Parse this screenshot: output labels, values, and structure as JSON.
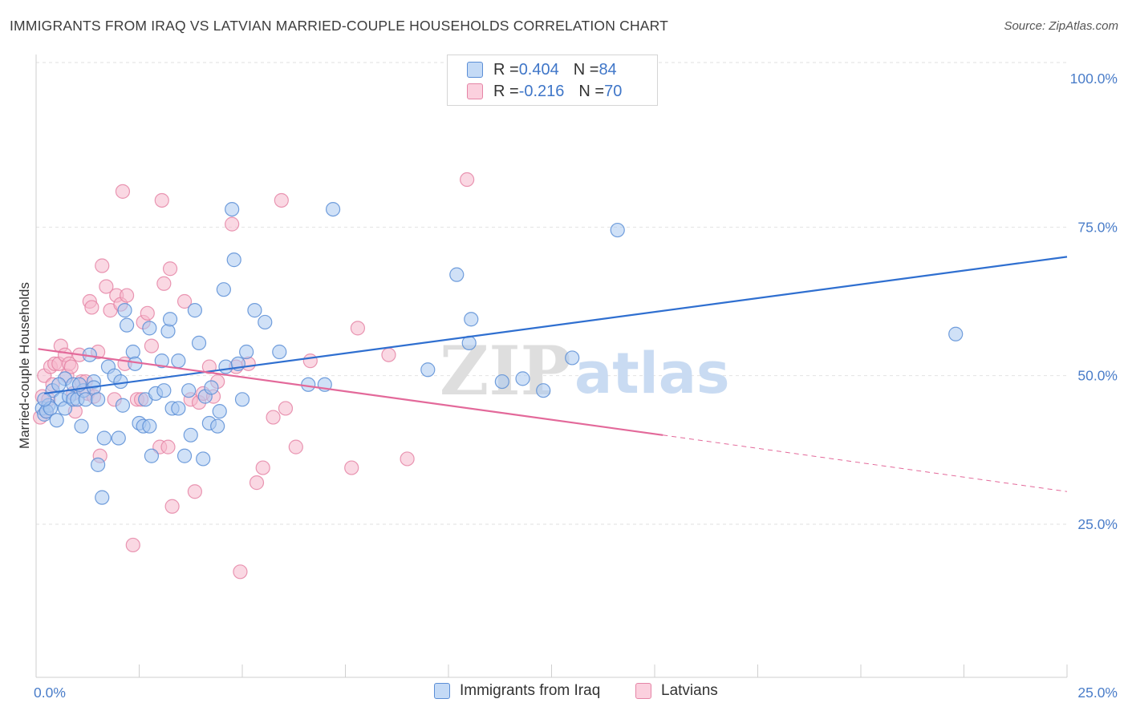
{
  "header": {
    "title": "IMMIGRANTS FROM IRAQ VS LATVIAN MARRIED-COUPLE HOUSEHOLDS CORRELATION CHART",
    "source": "Source: ZipAtlas.com"
  },
  "watermark": {
    "zip": "ZIP",
    "atlas": "atlas"
  },
  "legend": {
    "series": [
      {
        "r_label": "R = ",
        "r_value": "0.404",
        "n_label": "N = ",
        "n_value": "84"
      },
      {
        "r_label": "R = ",
        "r_value": "-0.216",
        "n_label": "N = ",
        "n_value": "70"
      }
    ]
  },
  "colors": {
    "blue_fill": "#a9c8f0",
    "blue_stroke": "#5b8ed6",
    "blue_line": "#2f6fd0",
    "pink_fill": "#f6b8cc",
    "pink_stroke": "#e585a6",
    "pink_line": "#e3699a",
    "tick_label": "#4a7dc9",
    "grid": "#e2e2e2"
  },
  "chart_data": {
    "type": "scatter",
    "title": "IMMIGRANTS FROM IRAQ VS LATVIAN MARRIED-COUPLE HOUSEHOLDS CORRELATION CHART",
    "xlabel": "",
    "ylabel": "Married-couple Households",
    "xlim": [
      0,
      25
    ],
    "ylim": [
      0,
      105
    ],
    "x_tick_labels": [
      "0.0%",
      "25.0%"
    ],
    "y_ticks": [
      25,
      50,
      75,
      100
    ],
    "y_tick_labels": [
      "25.0%",
      "50.0%",
      "75.0%",
      "100.0%"
    ],
    "grid": true,
    "legend_position": "top-center",
    "series": [
      {
        "name": "Immigrants from Iraq",
        "color": "#a9c8f0",
        "trend": {
          "x": [
            0.2,
            25.0
          ],
          "y": [
            47.0,
            70.0
          ]
        },
        "points": [
          [
            0.15,
            44.5
          ],
          [
            0.2,
            43.5
          ],
          [
            0.3,
            45.0
          ],
          [
            0.25,
            44.0
          ],
          [
            0.35,
            44.5
          ],
          [
            0.4,
            47.5
          ],
          [
            0.5,
            42.5
          ],
          [
            0.6,
            46.0
          ],
          [
            0.7,
            44.5
          ],
          [
            0.7,
            49.5
          ],
          [
            0.8,
            46.5
          ],
          [
            0.9,
            48.5
          ],
          [
            0.9,
            46.0
          ],
          [
            1.0,
            46.0
          ],
          [
            1.1,
            41.5
          ],
          [
            1.15,
            47.5
          ],
          [
            1.2,
            46.0
          ],
          [
            1.3,
            53.5
          ],
          [
            1.4,
            49.0
          ],
          [
            1.4,
            48.0
          ],
          [
            1.5,
            46.0
          ],
          [
            1.5,
            35.0
          ],
          [
            1.6,
            29.5
          ],
          [
            1.65,
            39.5
          ],
          [
            1.75,
            51.5
          ],
          [
            1.9,
            50.0
          ],
          [
            2.0,
            39.5
          ],
          [
            2.05,
            49.0
          ],
          [
            2.1,
            45.0
          ],
          [
            2.15,
            61.0
          ],
          [
            2.2,
            58.5
          ],
          [
            2.35,
            54.0
          ],
          [
            2.4,
            52.0
          ],
          [
            2.5,
            42.0
          ],
          [
            2.6,
            41.5
          ],
          [
            2.65,
            46.0
          ],
          [
            2.75,
            41.5
          ],
          [
            2.75,
            58.0
          ],
          [
            2.8,
            36.5
          ],
          [
            2.9,
            47.0
          ],
          [
            3.05,
            52.5
          ],
          [
            3.1,
            47.5
          ],
          [
            3.2,
            57.5
          ],
          [
            3.25,
            59.5
          ],
          [
            3.3,
            44.5
          ],
          [
            3.45,
            44.5
          ],
          [
            3.45,
            52.5
          ],
          [
            3.6,
            36.5
          ],
          [
            3.7,
            47.5
          ],
          [
            3.75,
            40.0
          ],
          [
            3.85,
            61.0
          ],
          [
            3.95,
            55.5
          ],
          [
            4.05,
            36.0
          ],
          [
            4.1,
            46.5
          ],
          [
            4.2,
            42.0
          ],
          [
            4.25,
            48.0
          ],
          [
            4.4,
            41.5
          ],
          [
            4.45,
            44.0
          ],
          [
            4.55,
            64.5
          ],
          [
            4.6,
            51.5
          ],
          [
            4.75,
            78.0
          ],
          [
            4.8,
            69.5
          ],
          [
            4.9,
            52.0
          ],
          [
            5.0,
            46.0
          ],
          [
            5.1,
            54.0
          ],
          [
            5.3,
            61.0
          ],
          [
            5.55,
            59.0
          ],
          [
            5.9,
            54.0
          ],
          [
            6.6,
            48.5
          ],
          [
            7.0,
            48.5
          ],
          [
            7.2,
            78.0
          ],
          [
            9.5,
            51.0
          ],
          [
            10.2,
            67.0
          ],
          [
            10.5,
            55.5
          ],
          [
            10.55,
            59.5
          ],
          [
            11.3,
            49.0
          ],
          [
            11.8,
            49.5
          ],
          [
            12.3,
            47.5
          ],
          [
            13.0,
            53.0
          ],
          [
            14.1,
            74.5
          ],
          [
            22.3,
            57.0
          ],
          [
            0.2,
            46.0
          ],
          [
            0.55,
            48.5
          ],
          [
            1.05,
            48.5
          ]
        ]
      },
      {
        "name": "Latvians",
        "color": "#f6b8cc",
        "trend": {
          "x": [
            0.05,
            15.2
          ],
          "y": [
            54.5,
            40.0
          ]
        },
        "trend_dashed": {
          "x": [
            15.2,
            25.0
          ],
          "y": [
            40.0,
            30.5
          ]
        },
        "points": [
          [
            0.1,
            43.0
          ],
          [
            0.15,
            46.5
          ],
          [
            0.2,
            50.0
          ],
          [
            0.25,
            44.0
          ],
          [
            0.3,
            46.0
          ],
          [
            0.35,
            51.5
          ],
          [
            0.4,
            48.5
          ],
          [
            0.45,
            52.0
          ],
          [
            0.55,
            52.0
          ],
          [
            0.6,
            55.0
          ],
          [
            0.7,
            53.5
          ],
          [
            0.75,
            50.0
          ],
          [
            0.8,
            52.0
          ],
          [
            0.85,
            51.5
          ],
          [
            0.9,
            47.0
          ],
          [
            0.95,
            44.0
          ],
          [
            1.05,
            53.5
          ],
          [
            1.1,
            49.0
          ],
          [
            1.2,
            49.0
          ],
          [
            1.25,
            47.0
          ],
          [
            1.3,
            62.5
          ],
          [
            1.35,
            61.5
          ],
          [
            1.4,
            46.5
          ],
          [
            1.5,
            54.0
          ],
          [
            1.55,
            36.5
          ],
          [
            1.6,
            68.5
          ],
          [
            1.7,
            65.0
          ],
          [
            1.8,
            61.0
          ],
          [
            1.9,
            46.0
          ],
          [
            1.95,
            63.5
          ],
          [
            2.05,
            62.0
          ],
          [
            2.1,
            81.0
          ],
          [
            2.15,
            52.0
          ],
          [
            2.2,
            63.5
          ],
          [
            2.35,
            21.5
          ],
          [
            2.45,
            46.0
          ],
          [
            2.55,
            46.0
          ],
          [
            2.6,
            59.0
          ],
          [
            2.7,
            60.5
          ],
          [
            2.8,
            55.0
          ],
          [
            3.0,
            38.0
          ],
          [
            3.05,
            79.5
          ],
          [
            3.1,
            65.5
          ],
          [
            3.2,
            38.0
          ],
          [
            3.25,
            68.0
          ],
          [
            3.3,
            28.0
          ],
          [
            3.6,
            62.5
          ],
          [
            3.75,
            46.0
          ],
          [
            3.85,
            30.5
          ],
          [
            3.95,
            45.5
          ],
          [
            4.05,
            47.0
          ],
          [
            4.2,
            51.5
          ],
          [
            4.3,
            46.5
          ],
          [
            4.4,
            49.0
          ],
          [
            4.75,
            75.5
          ],
          [
            4.85,
            51.5
          ],
          [
            4.95,
            17.0
          ],
          [
            5.15,
            52.0
          ],
          [
            5.35,
            32.0
          ],
          [
            5.5,
            34.5
          ],
          [
            5.75,
            43.0
          ],
          [
            5.95,
            79.5
          ],
          [
            6.05,
            44.5
          ],
          [
            6.3,
            38.0
          ],
          [
            6.65,
            52.5
          ],
          [
            7.65,
            34.5
          ],
          [
            7.8,
            58.0
          ],
          [
            8.55,
            53.5
          ],
          [
            9.0,
            36.0
          ],
          [
            10.45,
            83.0
          ]
        ]
      }
    ],
    "extra_points_note": ""
  },
  "bottom_legend": {
    "items": [
      {
        "label": "Immigrants from Iraq"
      },
      {
        "label": "Latvians"
      }
    ]
  }
}
